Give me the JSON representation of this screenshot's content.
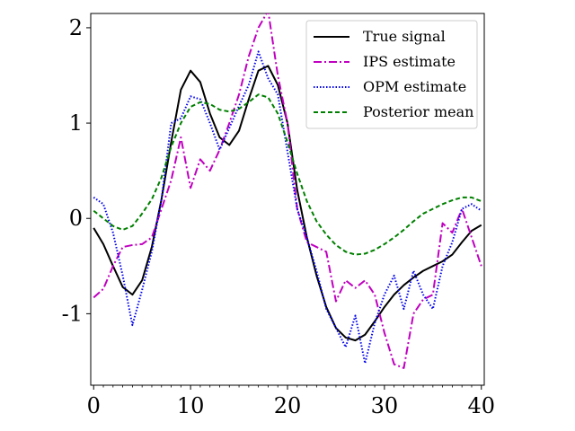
{
  "chart_data": {
    "type": "line",
    "xlim": [
      -0.3,
      40.3
    ],
    "ylim": [
      -1.75,
      2.15
    ],
    "x_ticks": [
      0,
      10,
      20,
      30,
      40
    ],
    "x_tick_labels": [
      "0",
      "10",
      "20",
      "30",
      "40"
    ],
    "y_ticks": [
      2,
      1,
      0,
      -1
    ],
    "y_tick_labels": [
      "2",
      "1",
      "0",
      "-1"
    ],
    "x_minor_step": 1,
    "grid": false,
    "legend_position": "top-right",
    "series": [
      {
        "name": "True signal",
        "color": "#000000",
        "dash": "solid",
        "values": [
          -0.1,
          -0.27,
          -0.5,
          -0.72,
          -0.8,
          -0.65,
          -0.3,
          0.2,
          0.8,
          1.35,
          1.55,
          1.43,
          1.1,
          0.85,
          0.77,
          0.92,
          1.25,
          1.55,
          1.6,
          1.4,
          1.0,
          0.3,
          -0.2,
          -0.6,
          -0.93,
          -1.15,
          -1.25,
          -1.28,
          -1.22,
          -1.08,
          -0.93,
          -0.8,
          -0.7,
          -0.62,
          -0.55,
          -0.5,
          -0.45,
          -0.38,
          -0.25,
          -0.13,
          -0.07
        ]
      },
      {
        "name": "IPS estimate",
        "color": "#c000c0",
        "dash": "dashdot",
        "values": [
          -0.83,
          -0.74,
          -0.5,
          -0.3,
          -0.28,
          -0.27,
          -0.2,
          0.1,
          0.4,
          0.85,
          0.32,
          0.62,
          0.5,
          0.72,
          1.0,
          1.3,
          1.7,
          2.0,
          2.18,
          1.5,
          1.0,
          0.1,
          -0.25,
          -0.3,
          -0.35,
          -0.87,
          -0.65,
          -0.73,
          -0.65,
          -0.8,
          -1.2,
          -1.53,
          -1.57,
          -1.0,
          -0.85,
          -0.8,
          -0.05,
          -0.15,
          0.1,
          -0.2,
          -0.5
        ]
      },
      {
        "name": "OPM estimate",
        "color": "#0000ee",
        "dash": "dotted",
        "values": [
          0.22,
          0.15,
          -0.15,
          -0.6,
          -1.12,
          -0.75,
          -0.35,
          0.2,
          1.0,
          1.05,
          1.28,
          1.25,
          1.0,
          0.72,
          0.95,
          1.18,
          1.4,
          1.75,
          1.47,
          1.3,
          0.7,
          0.1,
          -0.2,
          -0.55,
          -0.95,
          -1.15,
          -1.35,
          -1.02,
          -1.52,
          -1.1,
          -0.8,
          -0.6,
          -0.95,
          -0.55,
          -0.8,
          -0.95,
          -0.5,
          -0.25,
          0.1,
          0.15,
          0.08
        ]
      },
      {
        "name": "Posterior mean",
        "color": "#008000",
        "dash": "dashed",
        "values": [
          0.08,
          0.0,
          -0.08,
          -0.12,
          -0.08,
          0.05,
          0.2,
          0.43,
          0.75,
          1.0,
          1.17,
          1.22,
          1.2,
          1.14,
          1.12,
          1.15,
          1.22,
          1.3,
          1.27,
          1.1,
          0.8,
          0.47,
          0.18,
          -0.03,
          -0.17,
          -0.28,
          -0.35,
          -0.38,
          -0.37,
          -0.33,
          -0.27,
          -0.2,
          -0.12,
          -0.03,
          0.05,
          0.1,
          0.15,
          0.19,
          0.22,
          0.22,
          0.18
        ]
      }
    ]
  }
}
